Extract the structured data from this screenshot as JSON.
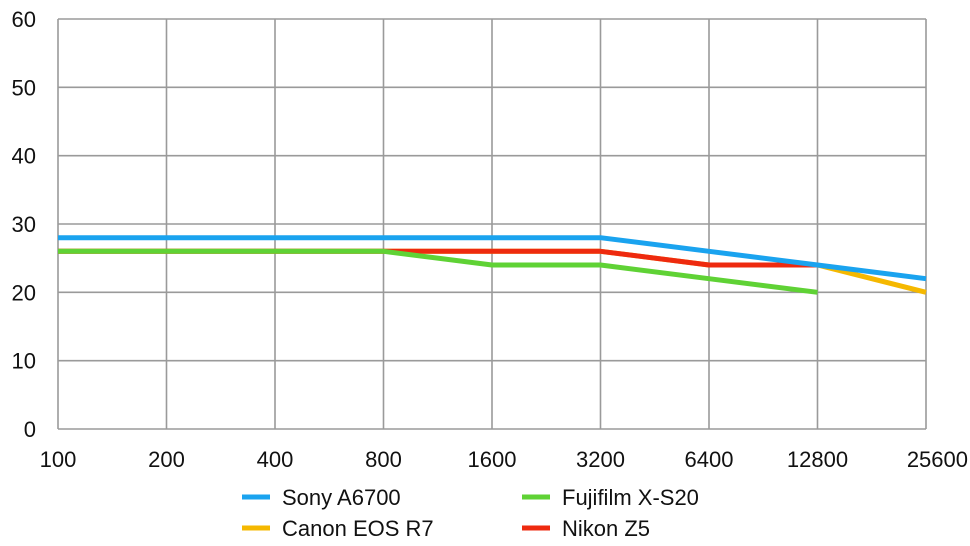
{
  "chart_data": {
    "type": "line",
    "title": "",
    "xlabel": "",
    "ylabel": "",
    "categories": [
      "100",
      "200",
      "400",
      "800",
      "1600",
      "3200",
      "6400",
      "12800",
      "25600"
    ],
    "ylim": [
      0,
      60
    ],
    "yticks": [
      "0",
      "10",
      "20",
      "30",
      "40",
      "50",
      "60"
    ],
    "grid": true,
    "legend_position": "bottom",
    "series": [
      {
        "name": "Canon EOS R7",
        "color": "#f5b800",
        "values": [
          26,
          26,
          26,
          26,
          26,
          26,
          24,
          24,
          20
        ]
      },
      {
        "name": "Nikon Z5",
        "color": "#ee2a0f",
        "values": [
          26,
          26,
          26,
          26,
          26,
          26,
          24,
          24,
          null
        ]
      },
      {
        "name": "Fujifilm X-S20",
        "color": "#5fd235",
        "values": [
          26,
          26,
          26,
          26,
          24,
          24,
          22,
          20,
          null
        ]
      },
      {
        "name": "Sony A6700",
        "color": "#1aa3ef",
        "values": [
          28,
          28,
          28,
          28,
          28,
          28,
          26,
          24,
          22
        ]
      }
    ],
    "legend_order": [
      "Sony A6700",
      "Fujifilm X-S20",
      "Canon EOS R7",
      "Nikon Z5"
    ]
  }
}
